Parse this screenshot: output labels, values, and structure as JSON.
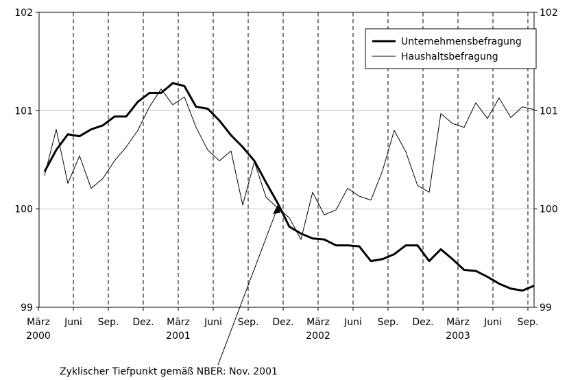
{
  "chart_data": {
    "type": "line",
    "categories": [
      "März 2000",
      null,
      null,
      "Juni",
      null,
      null,
      "Sep.",
      null,
      null,
      "Dez.",
      null,
      null,
      "März 2001",
      null,
      null,
      "Juni",
      null,
      null,
      "Sep.",
      null,
      null,
      "Dez.",
      null,
      null,
      "März 2002",
      null,
      null,
      "Juni",
      null,
      null,
      "Sep.",
      null,
      null,
      "Dez.",
      null,
      null,
      "März 2003",
      null,
      null,
      "Juni",
      null,
      null,
      "Sep."
    ],
    "series": [
      {
        "name": "Unternehmensbefragung",
        "color": "#000000",
        "values": [
          100.38,
          100.6,
          100.76,
          100.74,
          100.81,
          100.85,
          100.94,
          100.94,
          101.09,
          101.18,
          101.18,
          101.28,
          101.25,
          101.04,
          101.02,
          100.9,
          100.75,
          100.63,
          100.49,
          100.27,
          100.06,
          99.82,
          99.75,
          99.7,
          99.69,
          99.63,
          99.63,
          99.62,
          99.47,
          99.49,
          99.54,
          99.63,
          99.63,
          99.47,
          99.59,
          99.49,
          99.38,
          99.37,
          99.31,
          99.24,
          99.19,
          99.17,
          99.22
        ]
      },
      {
        "name": "Haushaltsbefragung",
        "color": "#000000",
        "values": [
          100.34,
          100.81,
          100.26,
          100.54,
          100.21,
          100.31,
          100.49,
          100.63,
          100.8,
          101.04,
          101.22,
          101.06,
          101.14,
          100.83,
          100.6,
          100.49,
          100.59,
          100.04,
          100.48,
          100.12,
          100.01,
          99.91,
          99.69,
          100.17,
          99.94,
          99.99,
          100.21,
          100.13,
          100.09,
          100.39,
          100.8,
          100.58,
          100.24,
          100.17,
          100.97,
          100.87,
          100.83,
          101.08,
          100.92,
          101.13,
          100.93,
          101.04,
          101.01
        ]
      }
    ],
    "ylim": [
      99,
      102
    ],
    "yticks": [
      99,
      100,
      101,
      102
    ],
    "y2lim": [
      99,
      102
    ],
    "y2ticks": [
      99,
      100,
      101,
      102
    ],
    "grid": true,
    "legend": "upper right",
    "annotation": "Zyklischer Tiefpunkt gemäß NBER: Nov. 2001"
  }
}
